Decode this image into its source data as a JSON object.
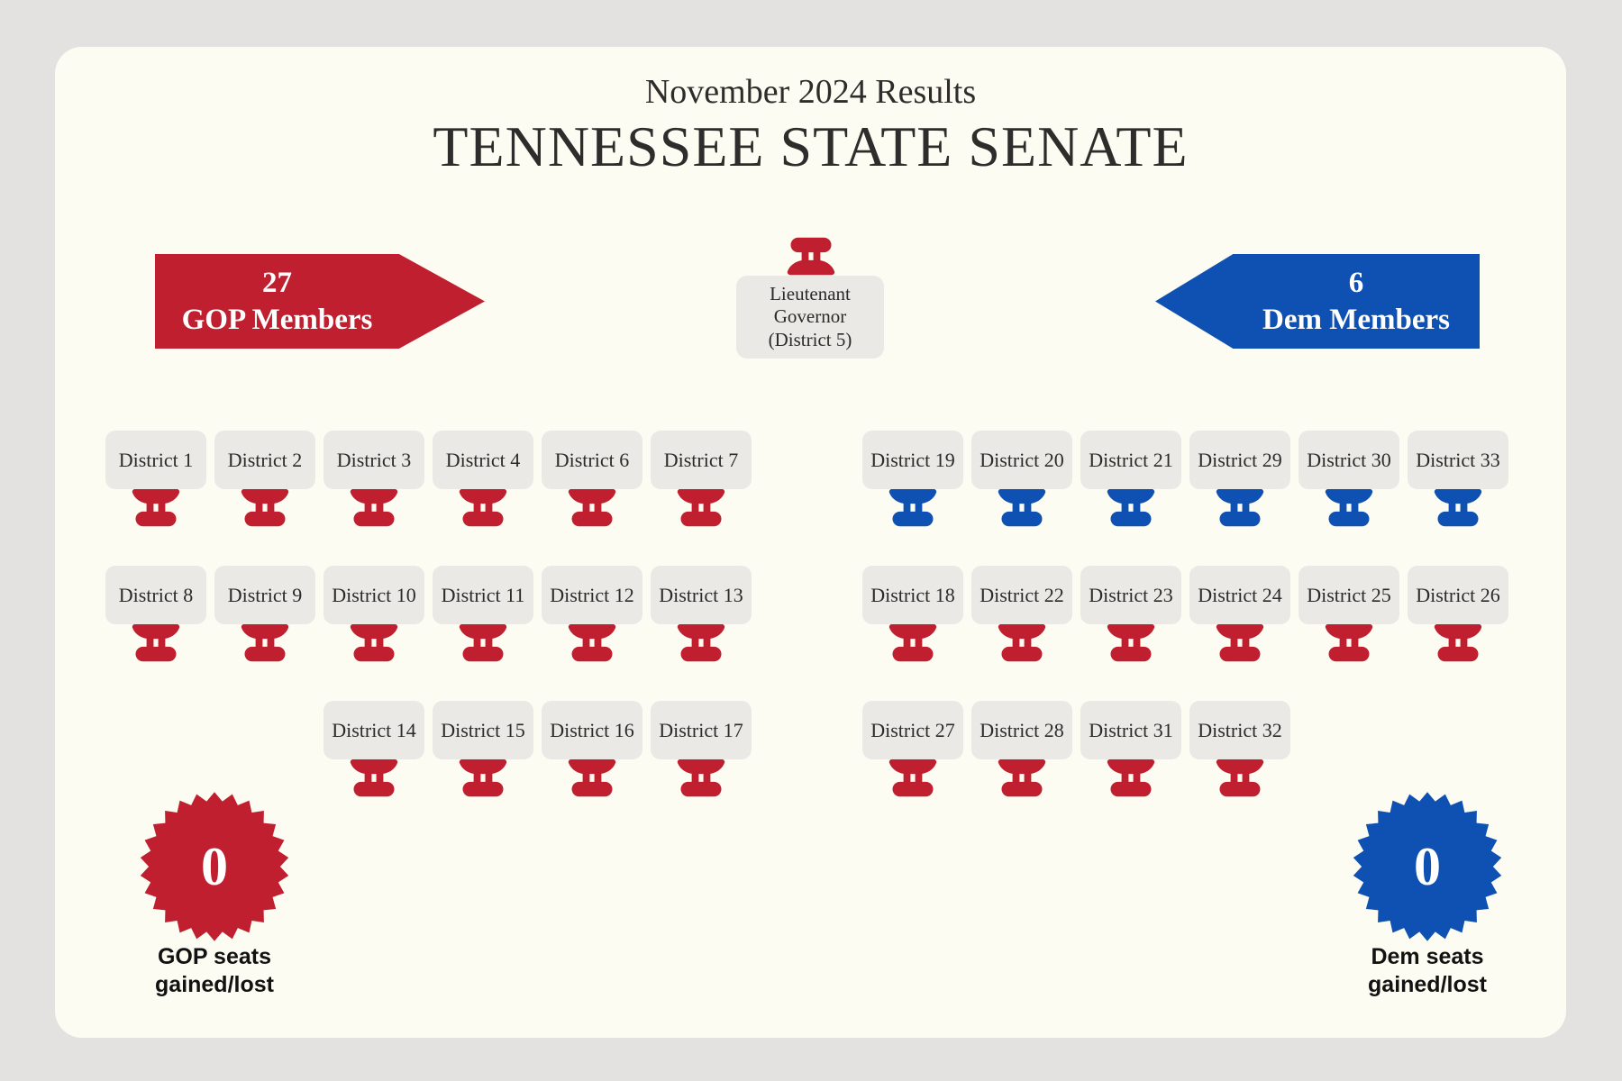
{
  "header": {
    "subtitle": "November 2024 Results",
    "title": "TENNESSEE STATE SENATE"
  },
  "colors": {
    "red": "#c01f30",
    "blue": "#0f51b2"
  },
  "gop_banner": {
    "count": "27",
    "label": "GOP Members"
  },
  "dem_banner": {
    "count": "6",
    "label": "Dem Members"
  },
  "lt_governor": {
    "line1": "Lieutenant",
    "line2": "Governor",
    "line3": "(District 5)",
    "party": "gop"
  },
  "seating": {
    "left": {
      "rows": [
        {
          "seats": [
            {
              "label": "District 1",
              "party": "gop"
            },
            {
              "label": "District 2",
              "party": "gop"
            },
            {
              "label": "District 3",
              "party": "gop"
            },
            {
              "label": "District 4",
              "party": "gop"
            },
            {
              "label": "District 6",
              "party": "gop"
            },
            {
              "label": "District 7",
              "party": "gop"
            }
          ]
        },
        {
          "seats": [
            {
              "label": "District 8",
              "party": "gop"
            },
            {
              "label": "District 9",
              "party": "gop"
            },
            {
              "label": "District 10",
              "party": "gop"
            },
            {
              "label": "District 11",
              "party": "gop"
            },
            {
              "label": "District 12",
              "party": "gop"
            },
            {
              "label": "District 13",
              "party": "gop"
            }
          ]
        },
        {
          "seats": [
            {
              "label": "District 14",
              "party": "gop"
            },
            {
              "label": "District 15",
              "party": "gop"
            },
            {
              "label": "District 16",
              "party": "gop"
            },
            {
              "label": "District 17",
              "party": "gop"
            }
          ]
        }
      ]
    },
    "right": {
      "rows": [
        {
          "seats": [
            {
              "label": "District 19",
              "party": "dem"
            },
            {
              "label": "District 20",
              "party": "dem"
            },
            {
              "label": "District 21",
              "party": "dem"
            },
            {
              "label": "District 29",
              "party": "dem"
            },
            {
              "label": "District 30",
              "party": "dem"
            },
            {
              "label": "District 33",
              "party": "dem"
            }
          ]
        },
        {
          "seats": [
            {
              "label": "District 18",
              "party": "gop"
            },
            {
              "label": "District 22",
              "party": "gop"
            },
            {
              "label": "District 23",
              "party": "gop"
            },
            {
              "label": "District 24",
              "party": "gop"
            },
            {
              "label": "District 25",
              "party": "gop"
            },
            {
              "label": "District 26",
              "party": "gop"
            }
          ]
        },
        {
          "seats": [
            {
              "label": "District 27",
              "party": "gop"
            },
            {
              "label": "District 28",
              "party": "gop"
            },
            {
              "label": "District 31",
              "party": "gop"
            },
            {
              "label": "District 32",
              "party": "gop"
            }
          ]
        }
      ]
    }
  },
  "badges": {
    "gop": {
      "value": "0",
      "line1": "GOP seats",
      "line2": "gained/lost"
    },
    "dem": {
      "value": "0",
      "line1": "Dem seats",
      "line2": "gained/lost"
    }
  }
}
